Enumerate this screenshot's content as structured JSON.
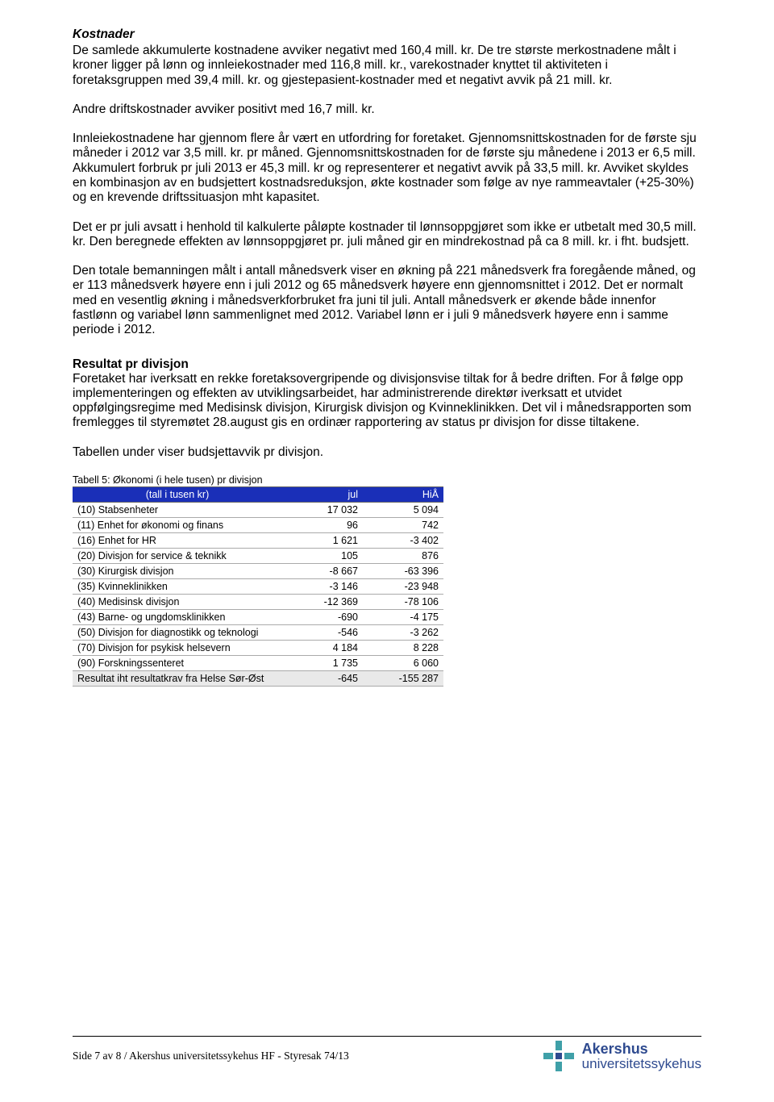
{
  "section_kostnader": {
    "heading": "Kostnader",
    "p1": "De samlede akkumulerte kostnadene avviker negativt med 160,4 mill. kr. De tre største merkostnadene målt i kroner ligger på lønn og innleiekostnader med 116,8 mill. kr., varekostnader knyttet til aktiviteten i foretaksgruppen med 39,4 mill. kr. og gjestepasient-kostnader med et negativt avvik på 21 mill. kr.",
    "p2": "Andre driftskostnader avviker positivt med 16,7 mill. kr.",
    "p3": "Innleiekostnadene har gjennom flere år vært en utfordring for foretaket. Gjennomsnittskostnaden for de første sju måneder i 2012 var 3,5 mill. kr. pr måned. Gjennomsnittskostnaden for de første sju månedene i 2013 er 6,5 mill. Akkumulert forbruk pr juli 2013 er 45,3 mill. kr og representerer et negativt avvik på 33,5 mill. kr.  Avviket skyldes en kombinasjon av en budsjettert kostnadsreduksjon, økte kostnader som følge av nye rammeavtaler (+25-30%) og en krevende driftssituasjon mht kapasitet.",
    "p4": "Det er pr juli avsatt i henhold til kalkulerte påløpte kostnader til lønnsoppgjøret som ikke er utbetalt med 30,5 mill. kr. Den beregnede effekten av lønnsoppgjøret pr. juli måned gir en mindrekostnad på ca 8 mill. kr. i fht. budsjett.",
    "p5": "Den totale bemanningen målt i antall månedsverk viser en økning på 221 månedsverk fra foregående måned, og er 113 månedsverk høyere enn i juli 2012 og 65 månedsverk høyere enn gjennomsnittet i 2012. Det er normalt med en vesentlig økning i månedsverkforbruket fra juni til juli.  Antall månedsverk er økende både innenfor fastlønn og variabel lønn sammenlignet med 2012. Variabel lønn er i juli 9 månedsverk høyere enn i samme periode i 2012."
  },
  "section_resultat": {
    "heading": "Resultat pr divisjon",
    "p1": "Foretaket har iverksatt en rekke foretaksovergripende og divisjonsvise tiltak for å bedre driften. For å følge opp implementeringen og effekten av utviklingsarbeidet, har administrerende direktør iverksatt et utvidet oppfølgingsregime med Medisinsk divisjon, Kirurgisk divisjon og Kvinneklinikken. Det vil i månedsrapporten som fremlegges til styremøtet 28.august gis en ordinær rapportering av status pr divisjon for disse tiltakene.",
    "p2": "Tabellen under viser budsjettavvik pr divisjon."
  },
  "table": {
    "caption": "Tabell 5: Økonomi (i hele tusen) pr divisjon",
    "header_bg": "#1a2fb8",
    "header_fg": "#ffffff",
    "result_bg": "#e9e9e9",
    "columns": [
      "(tall i tusen kr)",
      "jul",
      "HiÅ"
    ],
    "rows": [
      {
        "label": "(10) Stabsenheter",
        "jul": "17 032",
        "hia": "5 094"
      },
      {
        "label": "(11) Enhet for økonomi og finans",
        "jul": "96",
        "hia": "742"
      },
      {
        "label": "(16) Enhet for HR",
        "jul": "1 621",
        "hia": "-3 402"
      },
      {
        "label": "(20) Divisjon for service & teknikk",
        "jul": "105",
        "hia": "876"
      },
      {
        "label": "(30) Kirurgisk divisjon",
        "jul": "-8 667",
        "hia": "-63 396"
      },
      {
        "label": "(35) Kvinneklinikken",
        "jul": "-3 146",
        "hia": "-23 948"
      },
      {
        "label": "(40) Medisinsk divisjon",
        "jul": "-12 369",
        "hia": "-78 106"
      },
      {
        "label": "(43) Barne- og ungdomsklinikken",
        "jul": "-690",
        "hia": "-4 175"
      },
      {
        "label": "(50) Divisjon for diagnostikk og teknologi",
        "jul": "-546",
        "hia": "-3 262"
      },
      {
        "label": "(70) Divisjon for psykisk helsevern",
        "jul": "4 184",
        "hia": "8 228"
      },
      {
        "label": "(90) Forskningssenteret",
        "jul": "1 735",
        "hia": "6 060"
      }
    ],
    "result_row": {
      "label": "Resultat iht resultatkrav fra Helse Sør-Øst",
      "jul": "-645",
      "hia": "-155 287"
    }
  },
  "footer": {
    "text": "Side 7 av 8 / Akershus universitetssykehus HF - Styresak 74/13",
    "logo_line1": "Akershus",
    "logo_line2": "universitetssykehus",
    "logo_color": "#2e4a8f",
    "logo_accent": "#3fa0a8"
  }
}
